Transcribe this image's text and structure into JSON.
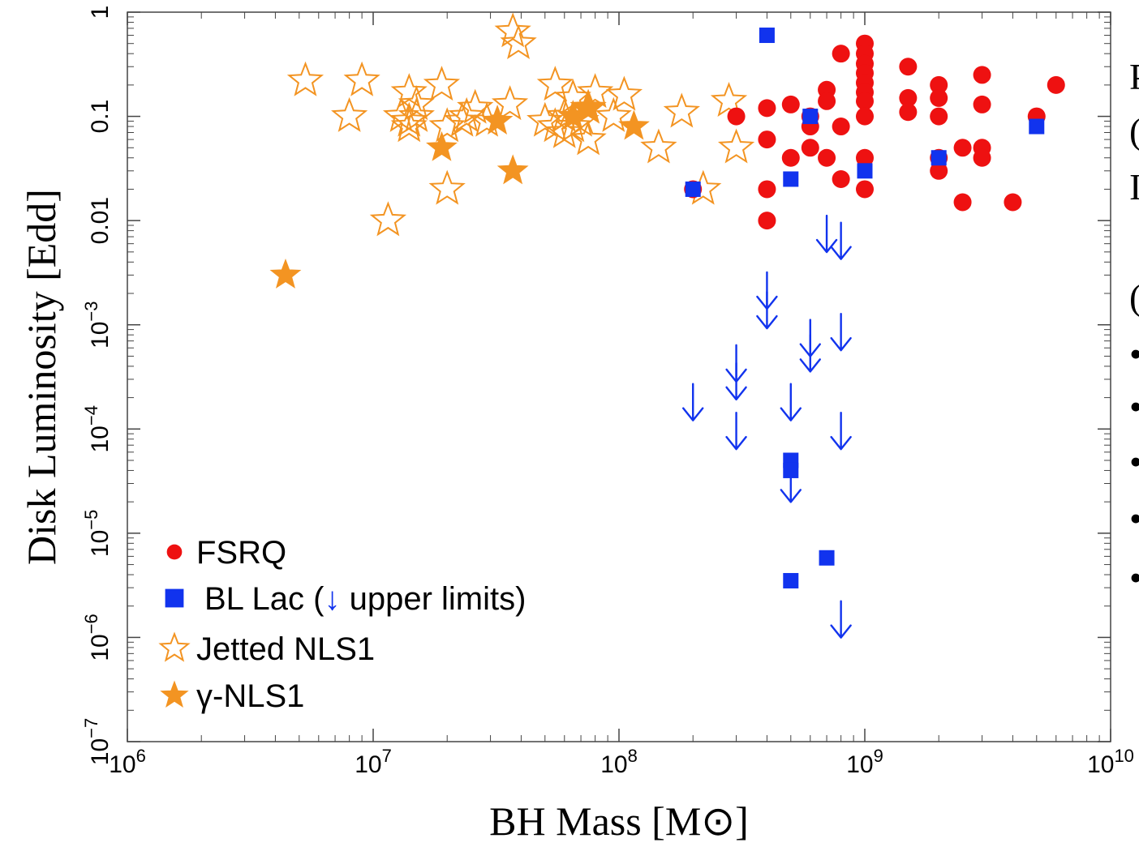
{
  "chart_data": {
    "type": "scatter",
    "title": "",
    "xlabel": "BH Mass [M⊙]",
    "ylabel": "Disk Luminosity [Edd]",
    "xscale": "log",
    "yscale": "log",
    "xlim": [
      1000000.0,
      10000000000.0
    ],
    "ylim": [
      1e-07,
      1
    ],
    "x_ticks": [
      {
        "value": 1000000.0,
        "label": "10^6"
      },
      {
        "value": 10000000.0,
        "label": "10^7"
      },
      {
        "value": 100000000.0,
        "label": "10^8"
      },
      {
        "value": 1000000000.0,
        "label": "10^9"
      },
      {
        "value": 10000000000.0,
        "label": "10^10"
      }
    ],
    "y_ticks": [
      {
        "value": 1e-07,
        "label": "10^-7"
      },
      {
        "value": 1e-06,
        "label": "10^-6"
      },
      {
        "value": 1e-05,
        "label": "10^-5"
      },
      {
        "value": 0.0001,
        "label": "10^-4"
      },
      {
        "value": 0.001,
        "label": "10^-3"
      },
      {
        "value": 0.01,
        "label": "0.01"
      },
      {
        "value": 0.1,
        "label": "0.1"
      },
      {
        "value": 1,
        "label": "1"
      }
    ],
    "grid": false,
    "legend_position": "bottom-left",
    "legend": [
      {
        "marker": "circle",
        "label": "FSRQ"
      },
      {
        "marker": "square",
        "label": "BL Lac (↓ upper limits)"
      },
      {
        "marker": "open-star",
        "label": "Jetted NLS1"
      },
      {
        "marker": "filled-star",
        "label": "γ-NLS1"
      }
    ],
    "colors": {
      "fsrq": "#ee1111",
      "bllac": "#1133ee",
      "nls1": "#f39422"
    },
    "series": [
      {
        "name": "FSRQ",
        "marker": "circle",
        "points": [
          [
            200000000.0,
            0.02
          ],
          [
            300000000.0,
            0.1
          ],
          [
            400000000.0,
            0.12
          ],
          [
            400000000.0,
            0.06
          ],
          [
            400000000.0,
            0.02
          ],
          [
            400000000.0,
            0.01
          ],
          [
            500000000.0,
            0.13
          ],
          [
            500000000.0,
            0.04
          ],
          [
            600000000.0,
            0.1
          ],
          [
            600000000.0,
            0.08
          ],
          [
            600000000.0,
            0.05
          ],
          [
            700000000.0,
            0.18
          ],
          [
            700000000.0,
            0.14
          ],
          [
            700000000.0,
            0.04
          ],
          [
            800000000.0,
            0.4
          ],
          [
            800000000.0,
            0.08
          ],
          [
            800000000.0,
            0.025
          ],
          [
            1000000000.0,
            0.5
          ],
          [
            1000000000.0,
            0.4
          ],
          [
            1000000000.0,
            0.32
          ],
          [
            1000000000.0,
            0.26
          ],
          [
            1000000000.0,
            0.21
          ],
          [
            1000000000.0,
            0.17
          ],
          [
            1000000000.0,
            0.14
          ],
          [
            1000000000.0,
            0.1
          ],
          [
            1000000000.0,
            0.04
          ],
          [
            1000000000.0,
            0.02
          ],
          [
            1500000000.0,
            0.3
          ],
          [
            1500000000.0,
            0.15
          ],
          [
            1500000000.0,
            0.11
          ],
          [
            2000000000.0,
            0.2
          ],
          [
            2000000000.0,
            0.15
          ],
          [
            2000000000.0,
            0.1
          ],
          [
            2000000000.0,
            0.04
          ],
          [
            2000000000.0,
            0.03
          ],
          [
            2500000000.0,
            0.05
          ],
          [
            2500000000.0,
            0.015
          ],
          [
            3000000000.0,
            0.25
          ],
          [
            3000000000.0,
            0.13
          ],
          [
            3000000000.0,
            0.05
          ],
          [
            3000000000.0,
            0.04
          ],
          [
            4000000000.0,
            0.015
          ],
          [
            5000000000.0,
            0.1
          ],
          [
            6000000000.0,
            0.2
          ]
        ]
      },
      {
        "name": "BL Lac",
        "marker": "square",
        "points": [
          [
            200000000.0,
            0.02
          ],
          [
            400000000.0,
            0.6
          ],
          [
            500000000.0,
            0.025
          ],
          [
            600000000.0,
            0.1
          ],
          [
            1000000000.0,
            0.03
          ],
          [
            2000000000.0,
            0.04
          ],
          [
            5000000000.0,
            0.08
          ],
          [
            500000000.0,
            5e-05
          ],
          [
            500000000.0,
            4e-05
          ],
          [
            500000000.0,
            3.5e-06
          ],
          [
            700000000.0,
            5.8e-06
          ]
        ]
      },
      {
        "name": "BL Lac (↓ upper limits)",
        "marker": "down-arrow",
        "points": [
          [
            200000000.0,
            0.00017
          ],
          [
            300000000.0,
            0.0004
          ],
          [
            300000000.0,
            0.00027
          ],
          [
            300000000.0,
            9e-05
          ],
          [
            400000000.0,
            0.002
          ],
          [
            400000000.0,
            0.0013
          ],
          [
            500000000.0,
            0.00017
          ],
          [
            500000000.0,
            2.8e-05
          ],
          [
            600000000.0,
            0.0007
          ],
          [
            600000000.0,
            0.0005
          ],
          [
            700000000.0,
            0.007
          ],
          [
            800000000.0,
            0.006
          ],
          [
            800000000.0,
            0.0008
          ],
          [
            800000000.0,
            9e-05
          ],
          [
            800000000.0,
            1.4e-06
          ]
        ]
      },
      {
        "name": "Jetted NLS1",
        "marker": "open-star",
        "points": [
          [
            5300000.0,
            0.22
          ],
          [
            8000000.0,
            0.1
          ],
          [
            9000000.0,
            0.22
          ],
          [
            11500000.0,
            0.01
          ],
          [
            13000000.0,
            0.1
          ],
          [
            14000000.0,
            0.09
          ],
          [
            14000000.0,
            0.17
          ],
          [
            15000000.0,
            0.13
          ],
          [
            15000000.0,
            0.1
          ],
          [
            14000000.0,
            0.08
          ],
          [
            19000000.0,
            0.2
          ],
          [
            20000000.0,
            0.08
          ],
          [
            20000000.0,
            0.02
          ],
          [
            23000000.0,
            0.09
          ],
          [
            24000000.0,
            0.1
          ],
          [
            26000000.0,
            0.12
          ],
          [
            29000000.0,
            0.09
          ],
          [
            36000000.0,
            0.13
          ],
          [
            37000000.0,
            0.65
          ],
          [
            39000000.0,
            0.5
          ],
          [
            50000000.0,
            0.09
          ],
          [
            55000000.0,
            0.2
          ],
          [
            55000000.0,
            0.08
          ],
          [
            60000000.0,
            0.1
          ],
          [
            60000000.0,
            0.07
          ],
          [
            65000000.0,
            0.15
          ],
          [
            65000000.0,
            0.08
          ],
          [
            70000000.0,
            0.09
          ],
          [
            75000000.0,
            0.12
          ],
          [
            75000000.0,
            0.06
          ],
          [
            80000000.0,
            0.17
          ],
          [
            95000000.0,
            0.1
          ],
          [
            105000000.0,
            0.16
          ],
          [
            145000000.0,
            0.05
          ],
          [
            180000000.0,
            0.11
          ],
          [
            220000000.0,
            0.02
          ],
          [
            280000000.0,
            0.14
          ],
          [
            300000000.0,
            0.05
          ]
        ]
      },
      {
        "name": "γ-NLS1",
        "marker": "filled-star",
        "points": [
          [
            4400000.0,
            0.003
          ],
          [
            19000000.0,
            0.05
          ],
          [
            32000000.0,
            0.09
          ],
          [
            37000000.0,
            0.03
          ],
          [
            65000000.0,
            0.1
          ],
          [
            75000000.0,
            0.12
          ],
          [
            115000000.0,
            0.08
          ]
        ]
      }
    ]
  },
  "side_text": {
    "lines": [
      "P",
      "(",
      "I",
      "(",
      "•",
      "•",
      "•",
      "•",
      "•"
    ]
  }
}
